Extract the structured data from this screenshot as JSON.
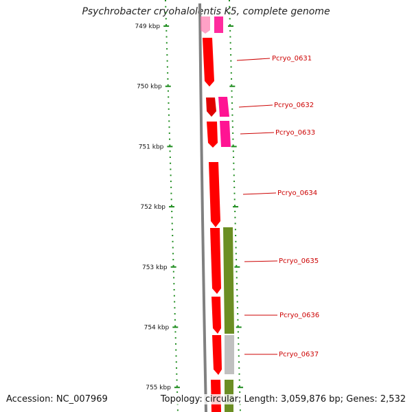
{
  "title": "Psychrobacter cryohalolentis K5, complete genome",
  "footer": {
    "accession": "Accession: NC_007969",
    "topology": "Topology: circular; Length: 3,059,876 bp; Genes: 2,532"
  },
  "colors": {
    "backbone": "#808080",
    "tick": "#1e8c1e",
    "gene_label": "#cc0000",
    "cds_red": "#ff0000",
    "cds_pink": "#ff1493",
    "feature_green": "#6b8e23",
    "feature_grey": "#c0c0c0"
  },
  "ticks": [
    "749 kbp",
    "750 kbp",
    "751 kbp",
    "752 kbp",
    "753 kbp",
    "754 kbp",
    "755 kbp"
  ],
  "gene_labels": [
    "Pcryo_0631",
    "Pcryo_0632",
    "Pcryo_0633",
    "Pcryo_0634",
    "Pcryo_0635",
    "Pcryo_0636",
    "Pcryo_0637"
  ]
}
